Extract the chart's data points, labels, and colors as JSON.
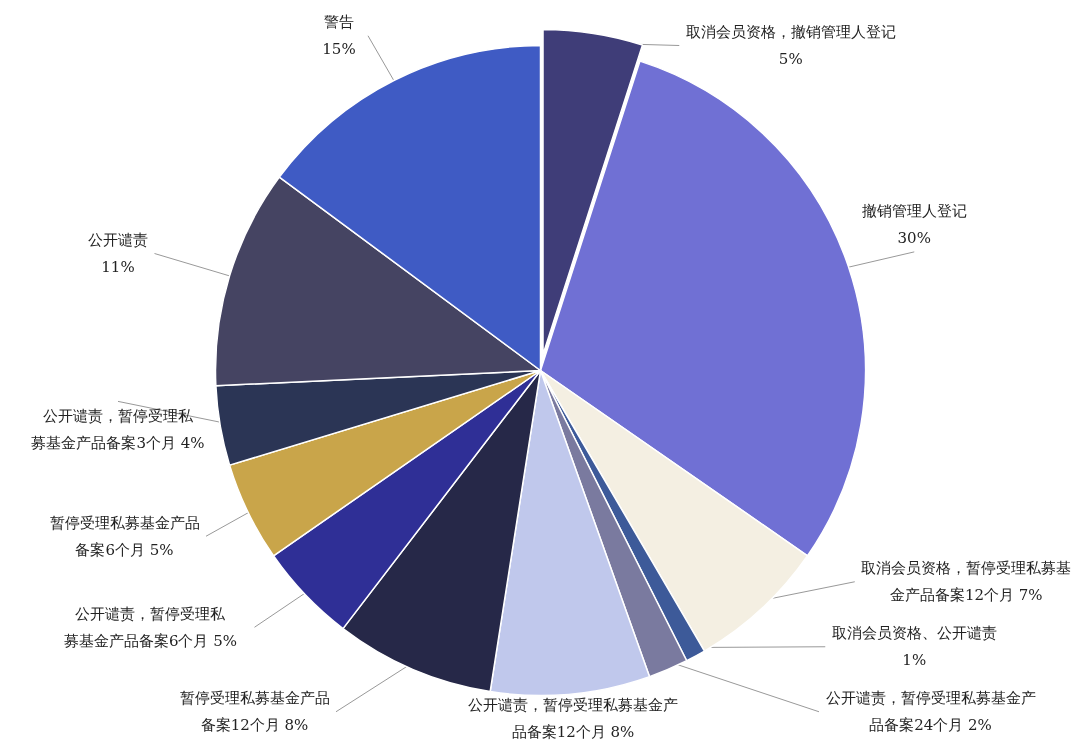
{
  "chart_data": {
    "type": "pie",
    "categories": [
      "取消会员资格，撤销管理人登记",
      "撤销管理人登记",
      "取消会员资格，暂停受理私募基金产品备案12个月",
      "取消会员资格、公开谴责",
      "公开谴责，暂停受理私募基金产品备案24个月",
      "公开谴责，暂停受理私募基金产品备案12个月",
      "暂停受理私募基金产品备案12个月",
      "公开谴责，暂停受理私募基金产品备案6个月",
      "暂停受理私募基金产品备案6个月",
      "公开谴责，暂停受理私募基金产品备案3个月",
      "公开谴责",
      "警告"
    ],
    "values": [
      5,
      30,
      7,
      1,
      2,
      8,
      8,
      5,
      5,
      4,
      11,
      15
    ],
    "colors": [
      "#3f3d78",
      "#7070d4",
      "#f4efe2",
      "#3d5a99",
      "#7a7a9f",
      "#c0c8ec",
      "#262848",
      "#2f2f96",
      "#c9a54a",
      "#2b3555",
      "#454462",
      "#3f5bc4"
    ],
    "value_labels": [
      "5%",
      "30%",
      "7%",
      "1%",
      "2%",
      "8%",
      "8%",
      "5%",
      "5%",
      "4%",
      "11%",
      "15%"
    ]
  }
}
